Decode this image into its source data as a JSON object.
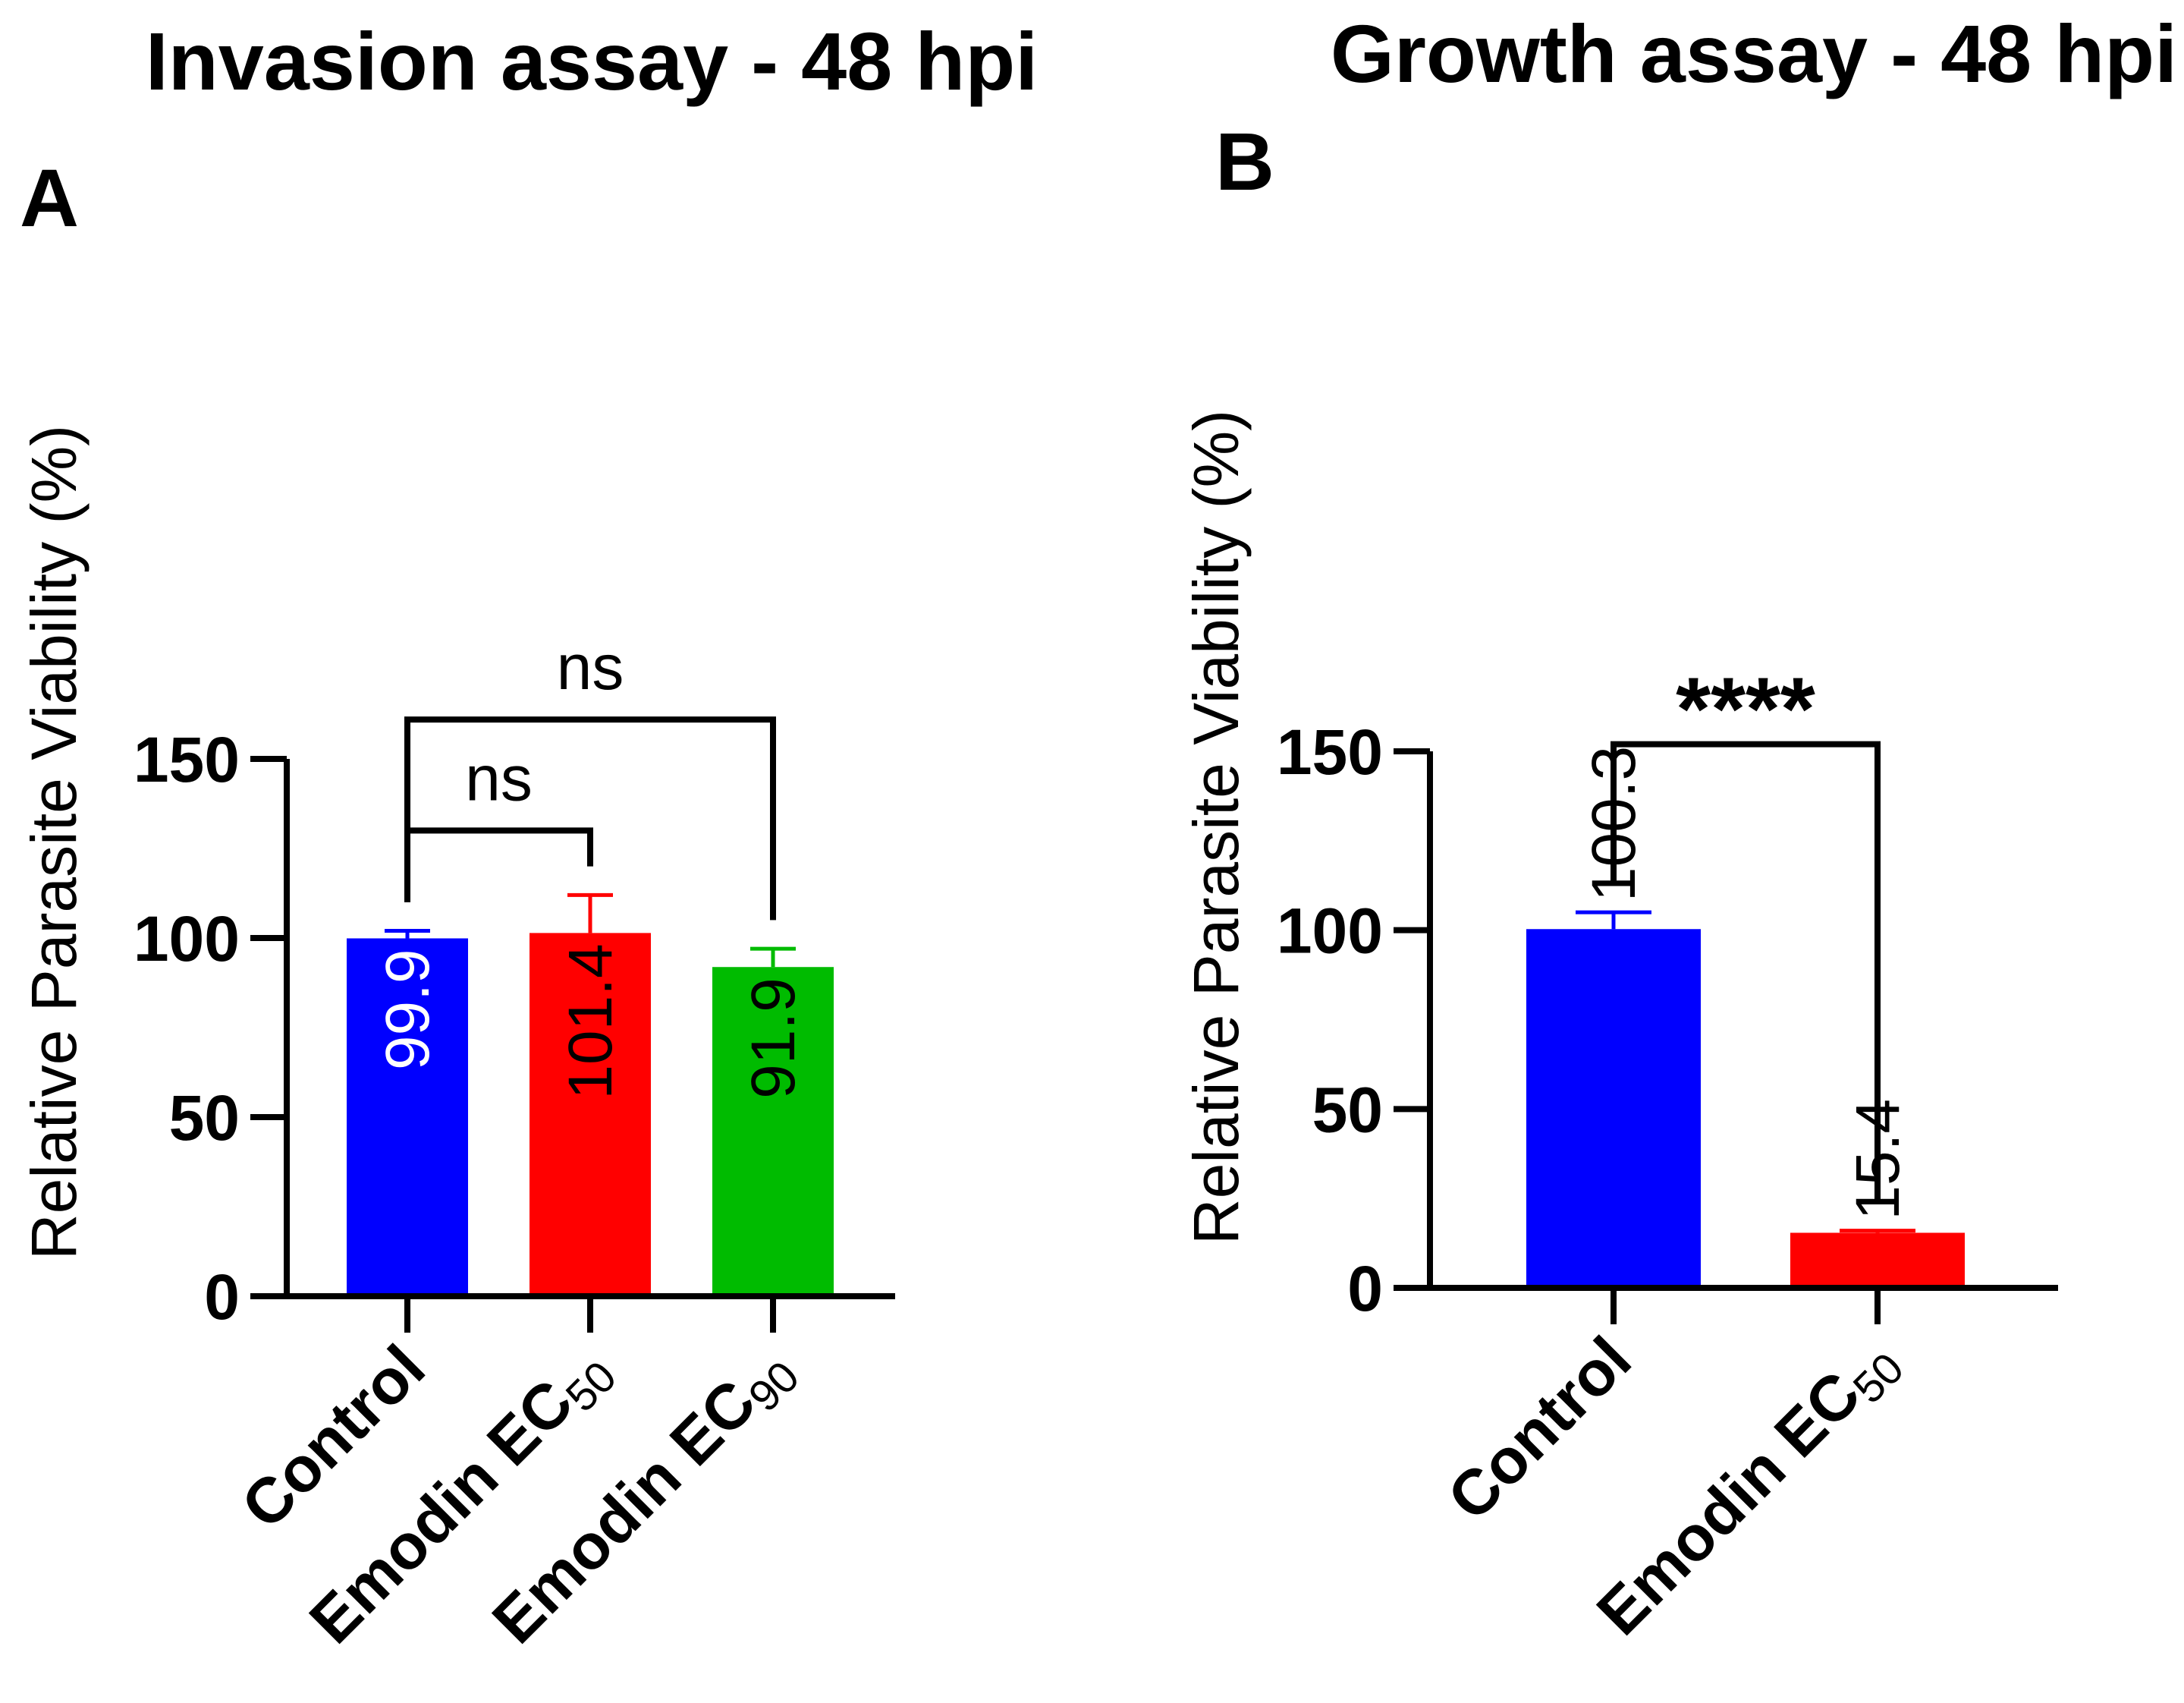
{
  "chart_data": [
    {
      "type": "bar",
      "panel": "A",
      "title": "Invasion assay - 48 hpi",
      "ylabel": "Relative Parasite Viability (%)",
      "ylim": [
        0,
        150
      ],
      "yticks": [
        "0",
        "50",
        "100",
        "150"
      ],
      "categories": [
        {
          "main": "Control",
          "sub": ""
        },
        {
          "main": "Emodin EC",
          "sub": "50"
        },
        {
          "main": "Emodin EC",
          "sub": "90"
        }
      ],
      "values": [
        99.9,
        101.4,
        91.9
      ],
      "error_upper": [
        102,
        112,
        97
      ],
      "value_labels": [
        "99.9",
        "101.4",
        "91.9"
      ],
      "colors": [
        "#0000ff",
        "#ff0000",
        "#00bb00"
      ],
      "label_colors": [
        "#ffffff",
        "#000000",
        "#000000"
      ],
      "significance": [
        {
          "from": 0,
          "to": 1,
          "label": "ns",
          "y": 130
        },
        {
          "from": 0,
          "to": 2,
          "label": "ns",
          "y": 161
        }
      ]
    },
    {
      "type": "bar",
      "panel": "B",
      "title": "Growth assay - 48 hpi",
      "ylabel": "Relative Parasite Viability (%)",
      "ylim": [
        0,
        150
      ],
      "yticks": [
        "0",
        "50",
        "100",
        "150"
      ],
      "categories": [
        {
          "main": "Control",
          "sub": ""
        },
        {
          "main": "Emodin EC",
          "sub": "50"
        }
      ],
      "values": [
        100.3,
        15.4
      ],
      "error_upper": [
        105,
        16
      ],
      "value_labels": [
        "100.3",
        "15.4"
      ],
      "colors": [
        "#0000ff",
        "#ff0000"
      ],
      "label_colors": [
        "#000000",
        "#000000"
      ],
      "significance": [
        {
          "from": 0,
          "to": 1,
          "label": "****",
          "y": 152
        }
      ]
    }
  ]
}
